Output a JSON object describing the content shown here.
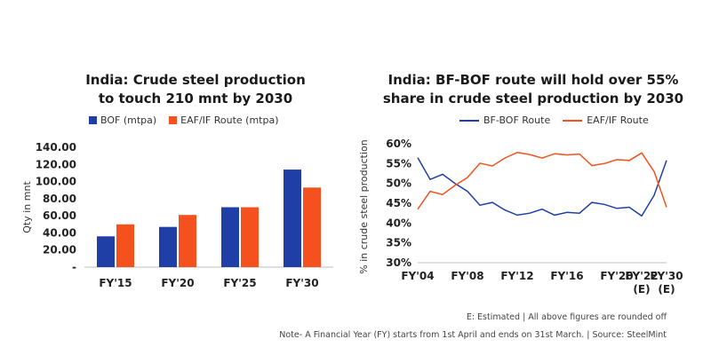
{
  "colors": {
    "blue": "#1f3ea6",
    "orange": "#f4511e"
  },
  "chart_data": [
    {
      "type": "bar",
      "title": "India: Crude steel production to touch 210 mnt by 2030",
      "title_lines": [
        "India: Crude steel production",
        "to touch 210 mnt by 2030"
      ],
      "categories": [
        "FY'15",
        "FY'20",
        "FY'25",
        "FY'30"
      ],
      "series": [
        {
          "name": "BOF (mtpa)",
          "values": [
            36,
            47,
            70,
            114
          ]
        },
        {
          "name": "EAF/IF Route (mtpa)",
          "values": [
            50,
            61,
            70,
            93
          ]
        }
      ],
      "ylabel": "Qty in mnt",
      "yticks": [
        "140.00",
        "120.00",
        "100.00",
        "80.00",
        "60.00",
        "40.00",
        "20.00",
        "-"
      ],
      "ylim": [
        0,
        140
      ],
      "legend": "top",
      "grid": false
    },
    {
      "type": "line",
      "title": "India: BF-BOF route will hold over 55% share in crude steel production by 2030",
      "title_lines": [
        "India: BF-BOF route will hold over 55%",
        "share in crude steel production by 2030"
      ],
      "x_labels": [
        "FY'04",
        "FY'08",
        "FY'12",
        "FY'16",
        "FY'20",
        "FY'22 (E)",
        "FY'30 (E)"
      ],
      "x_label_lines": [
        [
          "FY'04"
        ],
        [
          "FY'08"
        ],
        [
          "FY'12"
        ],
        [
          "FY'16"
        ],
        [
          "FY'20"
        ],
        [
          "FY'22",
          "(E)"
        ],
        [
          "FY'30",
          "(E)"
        ]
      ],
      "x": [
        2004,
        2005,
        2006,
        2007,
        2008,
        2009,
        2010,
        2011,
        2012,
        2013,
        2014,
        2015,
        2016,
        2017,
        2018,
        2019,
        2020,
        2021,
        2022,
        2023,
        2024,
        2025
      ],
      "series": [
        {
          "name": "BF-BOF Route",
          "values": [
            56.5,
            51.0,
            52.3,
            50.0,
            48.0,
            44.5,
            45.2,
            43.3,
            42.0,
            42.5,
            43.5,
            42.0,
            42.7,
            42.5,
            45.2,
            44.7,
            43.7,
            44.0,
            41.8,
            47.0,
            55.8,
            null
          ]
        },
        {
          "name": "EAF/IF Route",
          "values": [
            43.5,
            48.0,
            47.2,
            49.5,
            51.5,
            55.1,
            54.4,
            56.4,
            57.8,
            57.3,
            56.4,
            57.5,
            57.2,
            57.4,
            54.5,
            55.0,
            56.0,
            55.8,
            57.7,
            53.0,
            44.0,
            null
          ]
        }
      ],
      "ylabel": "% in crude steel production",
      "yticks": [
        "60%",
        "55%",
        "50%",
        "45%",
        "40%",
        "35%",
        "30%"
      ],
      "ylim": [
        30,
        60
      ],
      "legend": "top",
      "grid": false
    }
  ],
  "footnotes": {
    "line1": "E: Estimated  |  All above figures are rounded off",
    "line2": "Note- A Financial Year (FY) starts from 1st April and ends on 31st March.  |  Source: SteelMint"
  }
}
